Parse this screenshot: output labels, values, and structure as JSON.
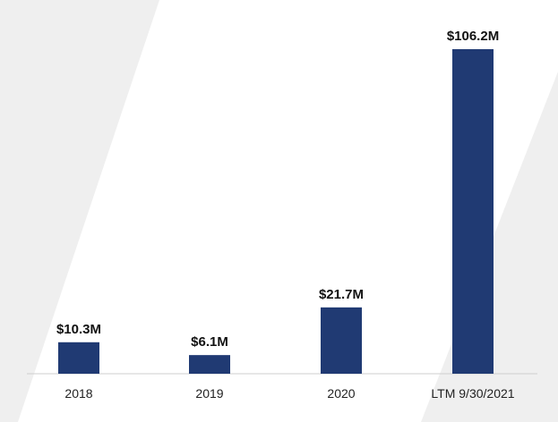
{
  "chart_data": {
    "type": "bar",
    "categories": [
      "2018",
      "2019",
      "2020",
      "LTM 9/30/2021"
    ],
    "values": [
      10.3,
      6.1,
      21.7,
      106.2
    ],
    "data_labels": [
      "$10.3M",
      "$6.1M",
      "$21.7M",
      "$106.2M"
    ],
    "title": "",
    "xlabel": "",
    "ylabel": "",
    "ylim": [
      0,
      106.2
    ],
    "grid": false,
    "legend": "none",
    "bar_color": "#203a73",
    "background_band_color": "#efefef",
    "axis_color": "#cfcfcf"
  }
}
